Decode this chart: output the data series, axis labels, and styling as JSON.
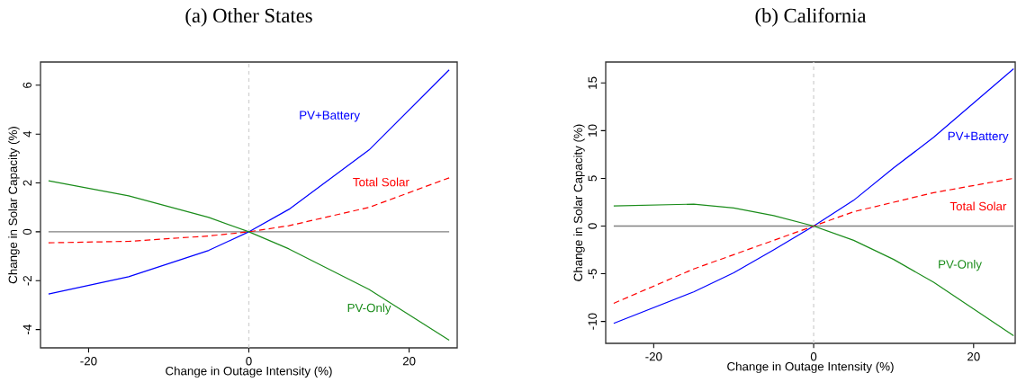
{
  "chart_data": [
    {
      "type": "line",
      "title": "(a) Other States",
      "xlabel": "Change in Outage Intensity (%)",
      "ylabel": "Change in Solar Capacity (%)",
      "x": [
        -25,
        -15,
        -5,
        0,
        5,
        15,
        25
      ],
      "series": [
        {
          "name": "PV+Battery",
          "color": "#0000ff",
          "line_style": "solid",
          "values": [
            -2.55,
            -1.84,
            -0.76,
            0,
            0.92,
            3.35,
            6.63
          ]
        },
        {
          "name": "Total Solar",
          "color": "#ff0000",
          "line_style": "dashed",
          "values": [
            -0.45,
            -0.39,
            -0.17,
            0,
            0.25,
            1.0,
            2.21
          ]
        },
        {
          "name": "PV-Only",
          "color": "#1a8c1a",
          "line_style": "solid",
          "values": [
            2.09,
            1.47,
            0.59,
            0,
            -0.7,
            -2.36,
            -4.44
          ]
        }
      ],
      "xlim": [
        -26,
        26
      ],
      "ylim": [
        -4.75,
        6.95
      ],
      "xticks": [
        -20,
        0,
        20
      ],
      "yticks": [
        -4,
        -2,
        0,
        2,
        4,
        6
      ],
      "ref_lines": [
        {
          "axis": "y",
          "value": 0,
          "color": "#808080",
          "line_style": "solid"
        },
        {
          "axis": "x",
          "value": 0,
          "color": "#d3d3d3",
          "line_style": "dashed"
        }
      ],
      "grid": false
    },
    {
      "type": "line",
      "title": "(b) California",
      "xlabel": "Change in Outage Intensity (%)",
      "ylabel": "Change in Solar Capacity (%)",
      "x": [
        -25,
        -15,
        -10,
        -5,
        0,
        5,
        10,
        15,
        25
      ],
      "series": [
        {
          "name": "PV+Battery",
          "color": "#0000ff",
          "line_style": "solid",
          "values": [
            -10.2,
            -6.9,
            -4.9,
            -2.5,
            0,
            2.7,
            6.1,
            9.3,
            16.5
          ]
        },
        {
          "name": "Total Solar",
          "color": "#ff0000",
          "line_style": "dashed",
          "values": [
            -8.1,
            -4.5,
            -3.0,
            -1.5,
            0,
            1.5,
            2.5,
            3.5,
            5.0
          ]
        },
        {
          "name": "PV-Only",
          "color": "#1a8c1a",
          "line_style": "solid",
          "values": [
            2.1,
            2.3,
            1.9,
            1.1,
            0,
            -1.5,
            -3.5,
            -5.9,
            -11.5
          ]
        }
      ],
      "xlim": [
        -26,
        25.2
      ],
      "ylim": [
        -12.3,
        17.2
      ],
      "xticks": [
        -20,
        0,
        20
      ],
      "yticks": [
        -10,
        -5,
        0,
        5,
        10,
        15
      ],
      "ref_lines": [
        {
          "axis": "y",
          "value": 0,
          "color": "#808080",
          "line_style": "solid"
        },
        {
          "axis": "x",
          "value": 0,
          "color": "#d3d3d3",
          "line_style": "dashed"
        }
      ],
      "grid": false
    }
  ]
}
